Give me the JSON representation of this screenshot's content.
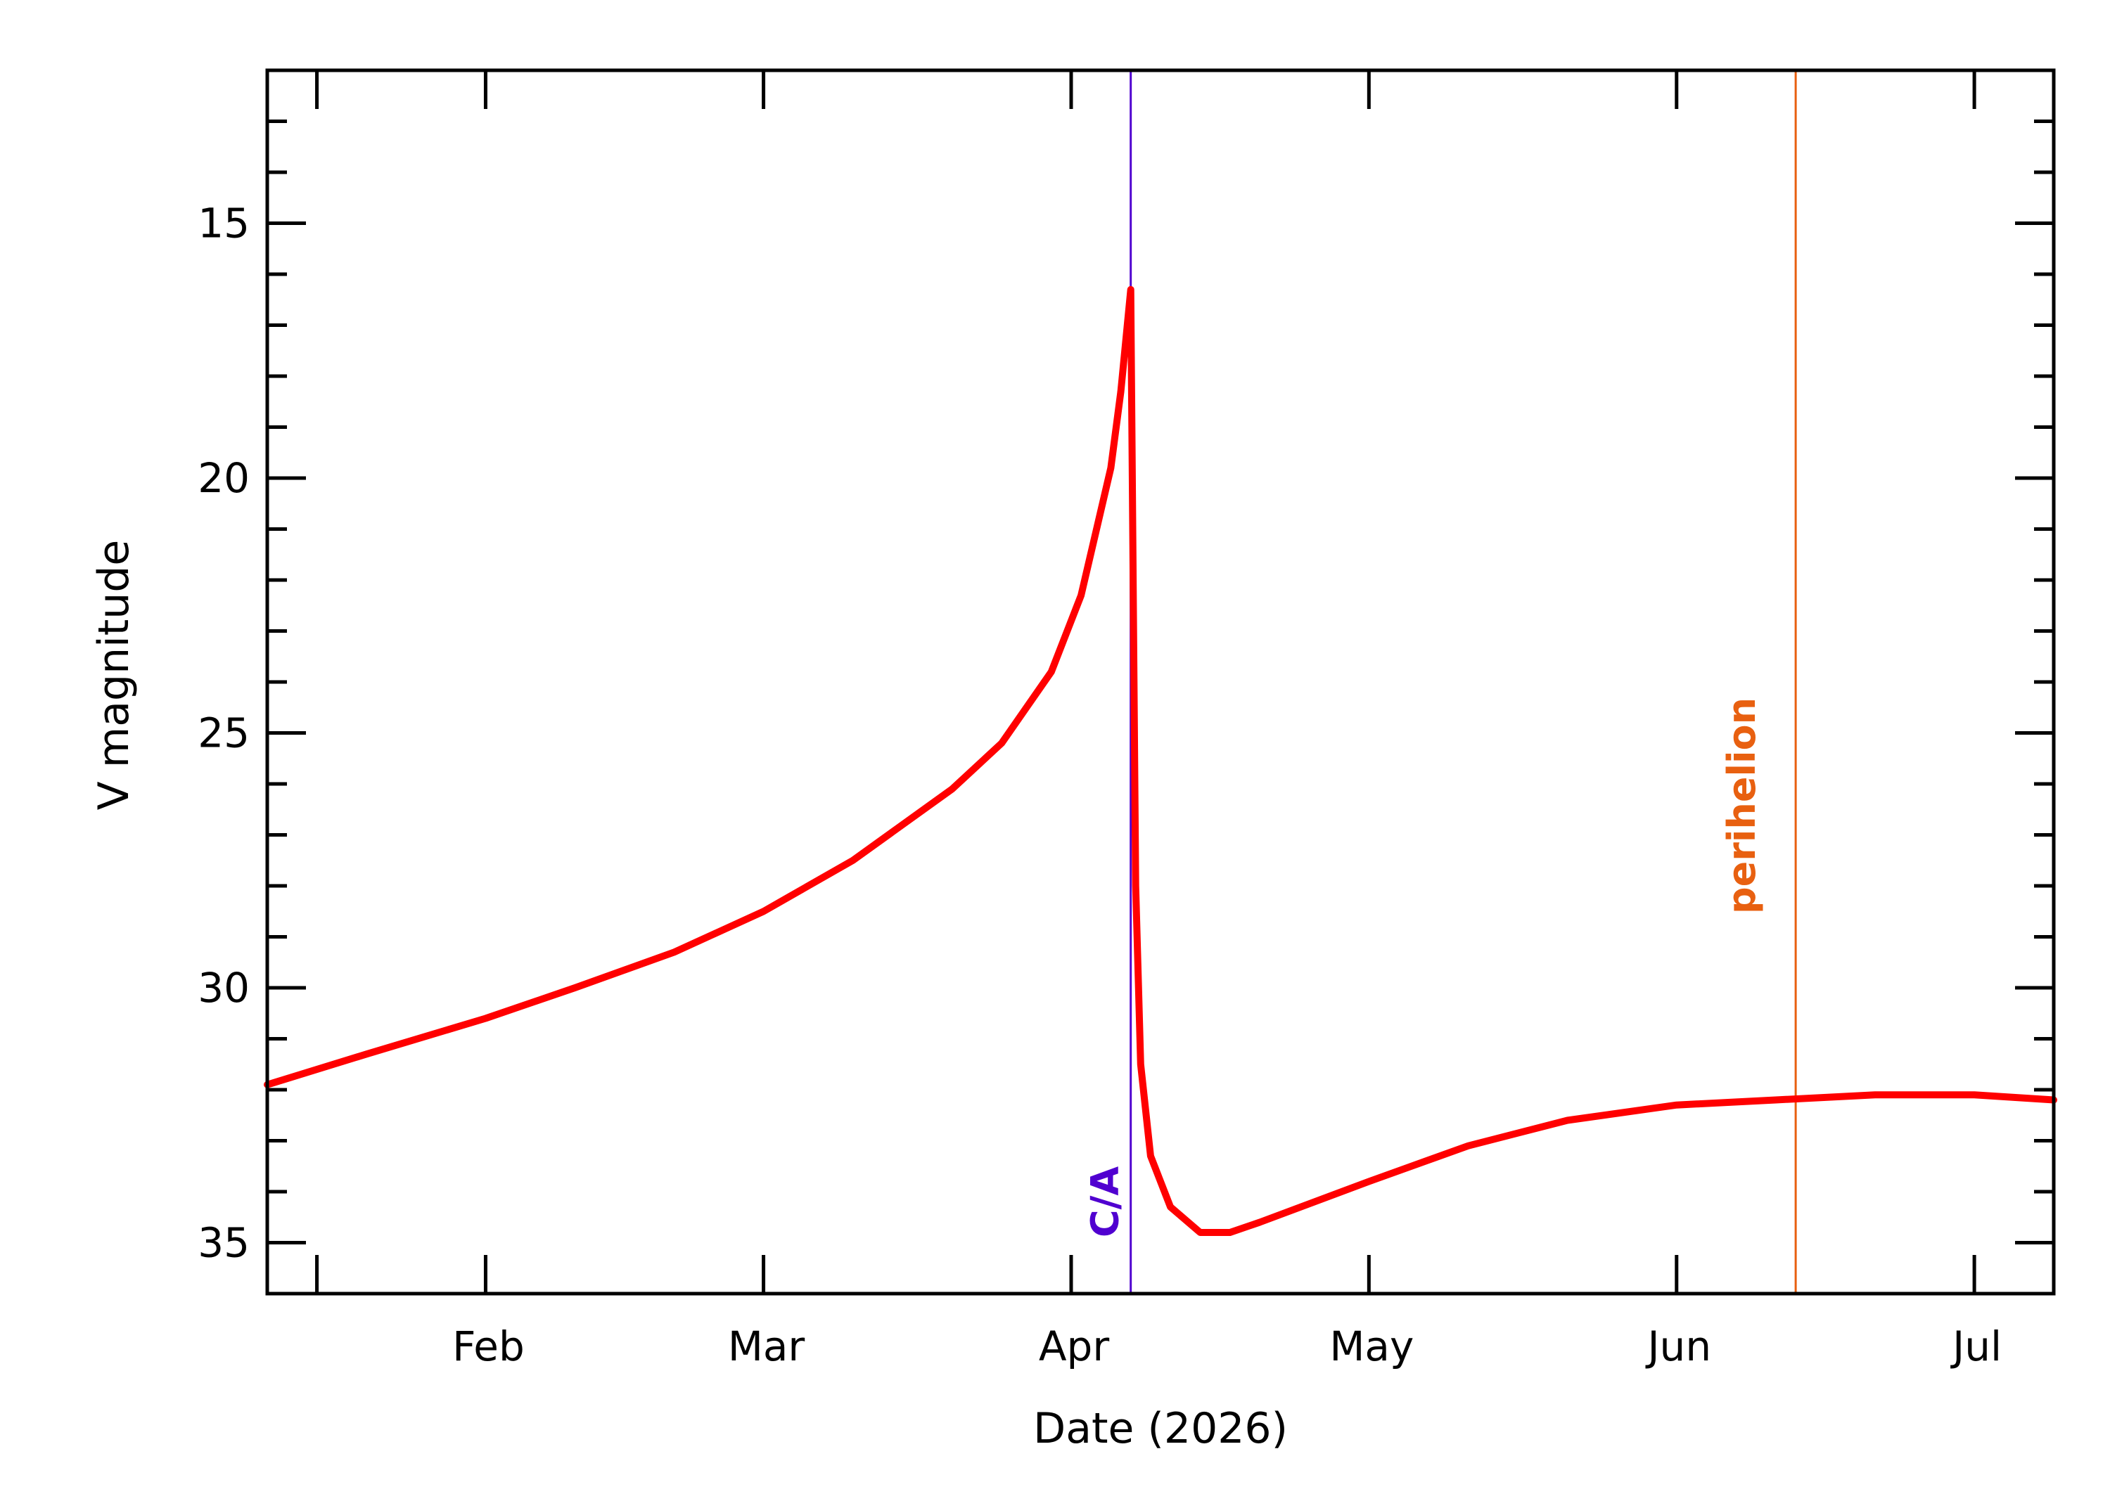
{
  "chart_data": {
    "type": "line",
    "xlabel": "Date (2026)",
    "ylabel": "V magnitude",
    "xlim": [
      "2026-01-10",
      "2026-07-09"
    ],
    "ylim": [
      36,
      12
    ],
    "y_inverted": true,
    "grid": false,
    "x_ticks": [
      {
        "date": "2026-02-01",
        "label": "Feb"
      },
      {
        "date": "2026-03-01",
        "label": "Mar"
      },
      {
        "date": "2026-04-01",
        "label": "Apr"
      },
      {
        "date": "2026-05-01",
        "label": "May"
      },
      {
        "date": "2026-06-01",
        "label": "Jun"
      },
      {
        "date": "2026-07-01",
        "label": "Jul"
      }
    ],
    "y_ticks": [
      15,
      20,
      25,
      30,
      35
    ],
    "series": [
      {
        "color": "#ff0000",
        "points": [
          [
            "2026-01-10",
            31.9
          ],
          [
            "2026-01-20",
            31.3
          ],
          [
            "2026-02-01",
            30.6
          ],
          [
            "2026-02-10",
            30.0
          ],
          [
            "2026-02-20",
            29.3
          ],
          [
            "2026-03-01",
            28.5
          ],
          [
            "2026-03-10",
            27.5
          ],
          [
            "2026-03-20",
            26.1
          ],
          [
            "2026-03-25",
            25.2
          ],
          [
            "2026-03-30",
            23.8
          ],
          [
            "2026-04-02",
            22.3
          ],
          [
            "2026-04-05",
            19.8
          ],
          [
            "2026-04-06",
            18.3
          ],
          [
            "2026-04-07",
            16.3
          ],
          [
            "2026-04-07T12:00",
            28.0
          ],
          [
            "2026-04-08",
            31.5
          ],
          [
            "2026-04-09",
            33.3
          ],
          [
            "2026-04-11",
            34.3
          ],
          [
            "2026-04-14",
            34.8
          ],
          [
            "2026-04-17",
            34.8
          ],
          [
            "2026-04-20",
            34.6
          ],
          [
            "2026-05-01",
            33.8
          ],
          [
            "2026-05-11",
            33.1
          ],
          [
            "2026-05-21",
            32.6
          ],
          [
            "2026-06-01",
            32.3
          ],
          [
            "2026-06-11",
            32.2
          ],
          [
            "2026-06-21",
            32.1
          ],
          [
            "2026-07-01",
            32.1
          ],
          [
            "2026-07-09",
            32.2
          ]
        ]
      }
    ],
    "markers": [
      {
        "date": "2026-04-07",
        "label": "C/A",
        "color": "#5000d0"
      },
      {
        "date": "2026-06-13",
        "label": "perihelion",
        "color": "#e86010"
      }
    ]
  }
}
